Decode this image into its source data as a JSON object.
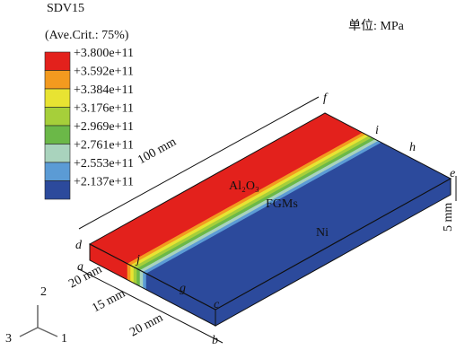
{
  "legend": {
    "title": "SDV15",
    "subtitle": "(Ave.Crit.: 75%)",
    "entries": [
      {
        "label": "+3.800e+11",
        "color": "#e3211c"
      },
      {
        "label": "+3.592e+11",
        "color": "#f39a1f"
      },
      {
        "label": "+3.384e+11",
        "color": "#e8e332"
      },
      {
        "label": "+3.176e+11",
        "color": "#a6cf3a"
      },
      {
        "label": "+2.969e+11",
        "color": "#6bb848"
      },
      {
        "label": "+2.761e+11",
        "color": "#a9d3bd"
      },
      {
        "label": "+2.553e+11",
        "color": "#5b9bd5"
      },
      {
        "label": "+2.137e+11",
        "color": "#2c4a9c"
      }
    ]
  },
  "unit": "单位: MPa",
  "regions": {
    "top": "Al₂O₃",
    "middle": "FGMs",
    "bottom": "Ni"
  },
  "dimensions": {
    "length": "100 mm",
    "thickness": "5 mm",
    "width_a": "20 mm",
    "width_b": "15 mm",
    "width_c": "20 mm"
  },
  "points": {
    "a": "a",
    "b": "b",
    "c": "c",
    "d": "d",
    "e": "e",
    "f": "f",
    "g": "g",
    "h": "h",
    "i": "i",
    "j": "j"
  },
  "axes": {
    "x": "1",
    "y": "2",
    "z": "3"
  }
}
